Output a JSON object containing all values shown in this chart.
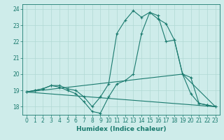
{
  "xlabel": "Humidex (Indice chaleur)",
  "bg_color": "#ceecea",
  "line_color": "#1a7a6e",
  "grid_color": "#b0d8d4",
  "xlim": [
    -0.5,
    23.5
  ],
  "ylim": [
    17.5,
    24.3
  ],
  "yticks": [
    18,
    19,
    20,
    21,
    22,
    23,
    24
  ],
  "xticks": [
    0,
    1,
    2,
    3,
    4,
    5,
    6,
    7,
    8,
    9,
    10,
    11,
    12,
    13,
    14,
    15,
    16,
    17,
    18,
    19,
    20,
    21,
    22,
    23
  ],
  "series": [
    {
      "x": [
        0,
        1,
        2,
        3,
        4,
        5,
        6,
        7,
        8,
        9,
        10,
        11,
        12,
        13,
        14,
        15,
        16,
        17,
        18,
        19,
        20,
        21,
        22,
        23
      ],
      "y": [
        18.9,
        19.0,
        19.1,
        19.3,
        19.3,
        19.1,
        19.0,
        18.6,
        18.0,
        18.6,
        19.4,
        22.5,
        23.3,
        23.9,
        23.5,
        23.8,
        23.6,
        22.0,
        22.1,
        20.0,
        19.8,
        18.2,
        18.1,
        18.0
      ],
      "marker": true
    },
    {
      "x": [
        0,
        1,
        2,
        3,
        4,
        5,
        6,
        7,
        8,
        9,
        10,
        11,
        12,
        13,
        14,
        15,
        16,
        17,
        18,
        19,
        20,
        21,
        22,
        23
      ],
      "y": [
        18.9,
        19.0,
        19.1,
        19.3,
        19.2,
        19.0,
        18.8,
        18.3,
        17.7,
        17.6,
        18.6,
        19.4,
        19.6,
        20.0,
        22.5,
        23.8,
        23.4,
        23.1,
        22.1,
        20.0,
        18.8,
        18.2,
        18.1,
        18.0
      ],
      "marker": true
    },
    {
      "x": [
        0,
        19,
        23
      ],
      "y": [
        18.9,
        20.0,
        18.0
      ],
      "marker": false
    },
    {
      "x": [
        0,
        23
      ],
      "y": [
        18.9,
        18.0
      ],
      "marker": false
    }
  ]
}
